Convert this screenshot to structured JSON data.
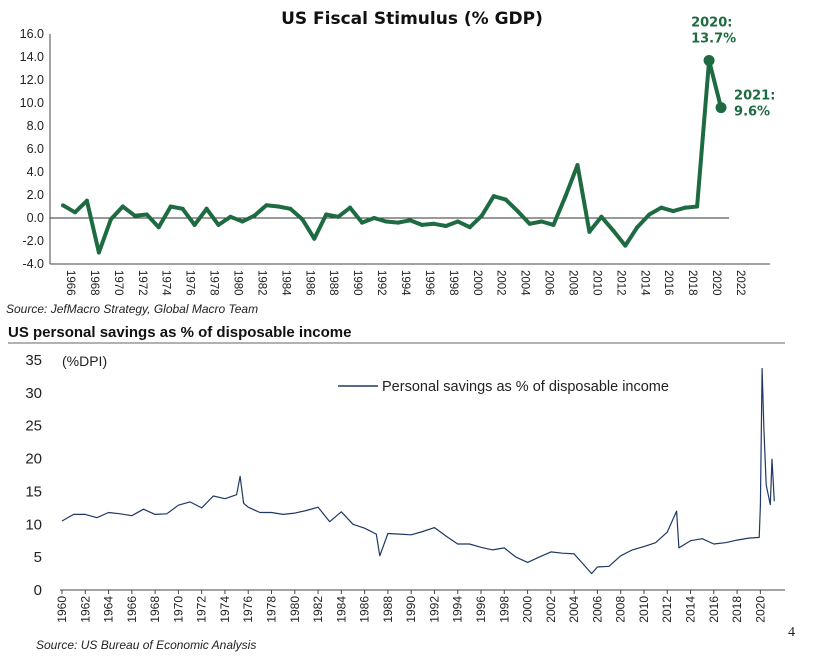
{
  "colors": {
    "stimulus": "#1e6b42",
    "savings": "#1f3864",
    "axis": "#444444"
  },
  "top_source": "Source: JefMacro Strategy, Global Macro Team",
  "bottom_source": "Source: US Bureau of Economic Analysis",
  "page_number": "4",
  "chart_data": [
    {
      "type": "line",
      "title": "US Fiscal Stimulus (% GDP)",
      "xlabel": "",
      "ylabel": "",
      "ylim": [
        -4.0,
        16.0
      ],
      "yticks": [
        "16.0",
        "14.0",
        "12.0",
        "10.0",
        "8.0",
        "6.0",
        "4.0",
        "2.0",
        "0.0",
        "-2.0",
        "-4.0"
      ],
      "xlim": [
        1966,
        2023
      ],
      "xticks": [
        "1966",
        "1968",
        "1970",
        "1972",
        "1974",
        "1976",
        "1978",
        "1980",
        "1982",
        "1984",
        "1986",
        "1988",
        "1990",
        "1992",
        "1994",
        "1996",
        "1998",
        "2000",
        "2002",
        "2004",
        "2006",
        "2008",
        "2010",
        "2012",
        "2014",
        "2016",
        "2018",
        "2020",
        "2022"
      ],
      "x": [
        1966,
        1967,
        1968,
        1969,
        1970,
        1971,
        1972,
        1973,
        1974,
        1975,
        1976,
        1977,
        1978,
        1979,
        1980,
        1981,
        1982,
        1983,
        1984,
        1985,
        1986,
        1987,
        1988,
        1989,
        1990,
        1991,
        1992,
        1993,
        1994,
        1995,
        1996,
        1997,
        1998,
        1999,
        2000,
        2001,
        2002,
        2003,
        2004,
        2005,
        2006,
        2007,
        2008,
        2009,
        2010,
        2011,
        2012,
        2013,
        2014,
        2015,
        2016,
        2017,
        2018,
        2019,
        2020,
        2021
      ],
      "values": [
        1.1,
        0.5,
        1.5,
        -3.0,
        -0.1,
        1.0,
        0.2,
        0.3,
        -0.8,
        1.0,
        0.8,
        -0.6,
        0.8,
        -0.6,
        0.1,
        -0.3,
        0.2,
        1.1,
        1.0,
        0.8,
        -0.1,
        -1.8,
        0.3,
        0.1,
        0.9,
        -0.4,
        0.0,
        -0.3,
        -0.4,
        -0.2,
        -0.6,
        -0.5,
        -0.7,
        -0.3,
        -0.8,
        0.2,
        1.9,
        1.6,
        0.6,
        -0.5,
        -0.3,
        -0.6,
        1.9,
        4.6,
        -1.2,
        0.1,
        -1.1,
        -2.4,
        -0.8,
        0.3,
        0.9,
        0.6,
        0.9,
        1.0,
        13.7,
        9.6
      ],
      "annotations": [
        {
          "x": 2020,
          "lines": [
            "2020:",
            "13.7%"
          ]
        },
        {
          "x": 2021,
          "lines": [
            "2021:",
            "9.6%"
          ]
        }
      ],
      "zero_line": true
    },
    {
      "type": "line",
      "title": "US personal savings as % of disposable income",
      "unit_label": "(%DPI)",
      "legend": "Personal savings as % of disposable income",
      "legend_position": "top-right",
      "ylim": [
        0,
        35
      ],
      "yticks": [
        "35",
        "30",
        "25",
        "20",
        "15",
        "10",
        "5",
        "0"
      ],
      "xlim": [
        1960,
        2021
      ],
      "xticks": [
        "1960",
        "1962",
        "1964",
        "1966",
        "1968",
        "1970",
        "1972",
        "1974",
        "1976",
        "1978",
        "1980",
        "1982",
        "1984",
        "1986",
        "1988",
        "1990",
        "1992",
        "1994",
        "1996",
        "1998",
        "2000",
        "2002",
        "2004",
        "2006",
        "2008",
        "2010",
        "2012",
        "2014",
        "2016",
        "2018",
        "2020"
      ],
      "x": [
        1960,
        1961,
        1962,
        1963,
        1964,
        1965,
        1966,
        1967,
        1968,
        1969,
        1970,
        1971,
        1972,
        1973,
        1974,
        1975,
        1975.3,
        1975.6,
        1976,
        1977,
        1978,
        1979,
        1980,
        1981,
        1982,
        1983,
        1984,
        1985,
        1986,
        1987,
        1987.3,
        1988,
        1989,
        1990,
        1991,
        1992,
        1993,
        1994,
        1995,
        1996,
        1997,
        1998,
        1999,
        2000,
        2001,
        2002,
        2003,
        2004,
        2005,
        2005.5,
        2006,
        2007,
        2008,
        2009,
        2010,
        2011,
        2012,
        2012.8,
        2013,
        2014,
        2015,
        2016,
        2017,
        2018,
        2019,
        2019.9,
        2020.0,
        2020.15,
        2020.3,
        2020.5,
        2020.7,
        2020.85,
        2021.0,
        2021.2
      ],
      "values": [
        10.5,
        11.5,
        11.5,
        11.0,
        11.8,
        11.6,
        11.3,
        12.3,
        11.5,
        11.6,
        12.9,
        13.4,
        12.5,
        14.3,
        13.9,
        14.5,
        17.3,
        13.2,
        12.6,
        11.8,
        11.8,
        11.5,
        11.7,
        12.1,
        12.6,
        10.4,
        11.9,
        10.0,
        9.4,
        8.5,
        5.2,
        8.6,
        8.5,
        8.4,
        8.9,
        9.5,
        8.2,
        7.0,
        7.0,
        6.5,
        6.1,
        6.4,
        5.0,
        4.2,
        5.0,
        5.8,
        5.6,
        5.5,
        3.5,
        2.5,
        3.5,
        3.6,
        5.2,
        6.1,
        6.6,
        7.2,
        8.8,
        12.0,
        6.4,
        7.5,
        7.8,
        7.0,
        7.2,
        7.6,
        7.9,
        8.0,
        12.9,
        33.7,
        24.5,
        16.0,
        14.3,
        13.0,
        19.9,
        13.5
      ]
    }
  ]
}
